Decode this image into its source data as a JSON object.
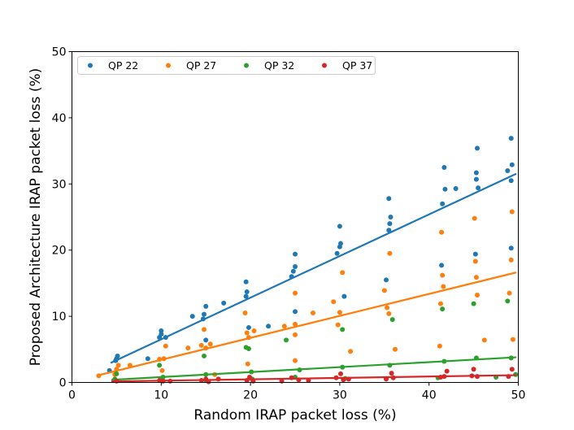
{
  "chart_data": {
    "type": "scatter",
    "title": "",
    "xlabel": "Random IRAP packet loss (%)",
    "ylabel": "Proposed Architecture IRAP packet loss (%)",
    "xlim": [
      0,
      50
    ],
    "ylim": [
      0,
      50
    ],
    "xticks": [
      0,
      10,
      20,
      30,
      40,
      50
    ],
    "yticks": [
      0,
      10,
      20,
      30,
      40,
      50
    ],
    "grid": false,
    "legend_position": "top",
    "series": [
      {
        "name": "QP 22",
        "color": "#1f77b4",
        "fit": [
          [
            4.4,
            3.0
          ],
          [
            49.7,
            31.5
          ]
        ],
        "points": [
          [
            4.2,
            1.8
          ],
          [
            4.9,
            3.3
          ],
          [
            5.0,
            3.6
          ],
          [
            5.1,
            4.0
          ],
          [
            8.5,
            3.6
          ],
          [
            9.8,
            6.8
          ],
          [
            10.0,
            7.3
          ],
          [
            10.0,
            7.8
          ],
          [
            10.5,
            6.8
          ],
          [
            13.5,
            10.0
          ],
          [
            14.7,
            9.6
          ],
          [
            14.8,
            10.3
          ],
          [
            15.0,
            11.5
          ],
          [
            15.0,
            6.4
          ],
          [
            17.0,
            12.0
          ],
          [
            19.5,
            13.0
          ],
          [
            19.6,
            13.7
          ],
          [
            19.5,
            15.2
          ],
          [
            19.8,
            8.3
          ],
          [
            22.0,
            8.5
          ],
          [
            24.6,
            16.0
          ],
          [
            24.8,
            16.8
          ],
          [
            25.0,
            17.5
          ],
          [
            25.0,
            19.4
          ],
          [
            25.0,
            10.7
          ],
          [
            29.7,
            19.5
          ],
          [
            30.0,
            20.5
          ],
          [
            30.1,
            21.0
          ],
          [
            30.0,
            23.6
          ],
          [
            30.5,
            13.0
          ],
          [
            35.2,
            15.5
          ],
          [
            35.5,
            23.0
          ],
          [
            35.6,
            24.0
          ],
          [
            35.7,
            25.0
          ],
          [
            35.5,
            27.8
          ],
          [
            41.4,
            17.7
          ],
          [
            41.5,
            27.0
          ],
          [
            41.8,
            29.2
          ],
          [
            41.7,
            32.5
          ],
          [
            43.0,
            29.3
          ],
          [
            45.2,
            19.4
          ],
          [
            45.3,
            30.7
          ],
          [
            45.3,
            31.7
          ],
          [
            45.4,
            35.4
          ],
          [
            45.5,
            29.4
          ],
          [
            48.8,
            32.0
          ],
          [
            49.2,
            30.5
          ],
          [
            49.2,
            36.9
          ],
          [
            49.3,
            32.9
          ],
          [
            49.2,
            20.3
          ]
        ]
      },
      {
        "name": "QP 27",
        "color": "#ff7f0e",
        "fit": [
          [
            3.0,
            1.1
          ],
          [
            49.7,
            16.6
          ]
        ],
        "points": [
          [
            3.0,
            1.0
          ],
          [
            4.8,
            1.2
          ],
          [
            5.0,
            2.0
          ],
          [
            5.2,
            2.6
          ],
          [
            6.5,
            2.6
          ],
          [
            9.8,
            3.5
          ],
          [
            10.1,
            1.8
          ],
          [
            10.3,
            3.6
          ],
          [
            10.5,
            5.5
          ],
          [
            13.0,
            5.2
          ],
          [
            14.5,
            5.6
          ],
          [
            14.8,
            8.0
          ],
          [
            15.0,
            5.2
          ],
          [
            15.5,
            5.8
          ],
          [
            16.0,
            1.2
          ],
          [
            19.4,
            10.5
          ],
          [
            19.6,
            7.5
          ],
          [
            19.8,
            6.8
          ],
          [
            19.7,
            2.8
          ],
          [
            20.4,
            7.8
          ],
          [
            23.8,
            8.5
          ],
          [
            25.0,
            13.5
          ],
          [
            25.0,
            8.8
          ],
          [
            25.0,
            7.2
          ],
          [
            25.0,
            3.3
          ],
          [
            27.0,
            10.5
          ],
          [
            29.3,
            12.2
          ],
          [
            29.8,
            8.7
          ],
          [
            30.0,
            10.6
          ],
          [
            30.3,
            16.6
          ],
          [
            31.2,
            4.7
          ],
          [
            35.0,
            13.9
          ],
          [
            35.3,
            11.3
          ],
          [
            35.5,
            10.4
          ],
          [
            35.6,
            19.5
          ],
          [
            36.2,
            5.0
          ],
          [
            41.4,
            22.7
          ],
          [
            41.5,
            16.2
          ],
          [
            41.6,
            14.5
          ],
          [
            41.3,
            11.9
          ],
          [
            41.2,
            5.5
          ],
          [
            45.1,
            24.8
          ],
          [
            45.2,
            18.3
          ],
          [
            45.3,
            15.9
          ],
          [
            45.4,
            13.2
          ],
          [
            46.2,
            6.4
          ],
          [
            49.0,
            13.5
          ],
          [
            49.2,
            18.5
          ],
          [
            49.3,
            25.8
          ],
          [
            49.4,
            6.5
          ]
        ]
      },
      {
        "name": "QP 32",
        "color": "#2ca02c",
        "fit": [
          [
            4.5,
            0.4
          ],
          [
            49.7,
            3.8
          ]
        ],
        "points": [
          [
            4.8,
            0.5
          ],
          [
            5.0,
            1.3
          ],
          [
            9.8,
            2.6
          ],
          [
            10.0,
            0.3
          ],
          [
            10.2,
            0.8
          ],
          [
            14.8,
            4.0
          ],
          [
            15.0,
            1.2
          ],
          [
            15.0,
            0.3
          ],
          [
            19.5,
            5.3
          ],
          [
            19.8,
            5.1
          ],
          [
            20.1,
            1.6
          ],
          [
            20.2,
            0.5
          ],
          [
            24.0,
            6.4
          ],
          [
            25.0,
            0.8
          ],
          [
            25.5,
            1.9
          ],
          [
            30.3,
            8.0
          ],
          [
            30.6,
            0.6
          ],
          [
            30.3,
            2.3
          ],
          [
            35.9,
            9.5
          ],
          [
            35.6,
            2.6
          ],
          [
            35.2,
            0.6
          ],
          [
            41.5,
            11.1
          ],
          [
            41.7,
            3.2
          ],
          [
            41.0,
            0.7
          ],
          [
            45.0,
            11.9
          ],
          [
            45.3,
            3.7
          ],
          [
            47.5,
            0.8
          ],
          [
            48.8,
            12.3
          ],
          [
            49.2,
            3.7
          ],
          [
            49.7,
            1.2
          ]
        ]
      },
      {
        "name": "QP 37",
        "color": "#d62728",
        "fit": [
          [
            4.5,
            0.15
          ],
          [
            49.7,
            1.1
          ]
        ],
        "points": [
          [
            5.0,
            0.2
          ],
          [
            9.8,
            0.3
          ],
          [
            10.2,
            0.2
          ],
          [
            11.0,
            0.2
          ],
          [
            14.5,
            0.3
          ],
          [
            15.0,
            0.5
          ],
          [
            15.3,
            0.1
          ],
          [
            16.4,
            0.5
          ],
          [
            19.6,
            0.3
          ],
          [
            19.9,
            0.8
          ],
          [
            20.3,
            0.2
          ],
          [
            23.5,
            0.2
          ],
          [
            24.6,
            0.7
          ],
          [
            25.4,
            0.4
          ],
          [
            26.5,
            0.3
          ],
          [
            29.6,
            0.7
          ],
          [
            30.1,
            1.3
          ],
          [
            30.4,
            0.4
          ],
          [
            31.0,
            0.5
          ],
          [
            35.2,
            0.5
          ],
          [
            35.8,
            1.4
          ],
          [
            36.0,
            0.7
          ],
          [
            41.3,
            0.8
          ],
          [
            41.7,
            0.9
          ],
          [
            42.0,
            1.7
          ],
          [
            44.8,
            1.0
          ],
          [
            45.0,
            2.0
          ],
          [
            45.4,
            0.9
          ],
          [
            48.9,
            0.9
          ],
          [
            49.3,
            2.0
          ]
        ]
      }
    ]
  }
}
